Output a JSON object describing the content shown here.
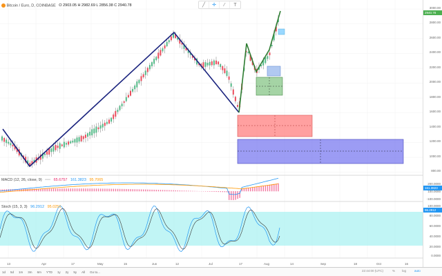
{
  "symbol": {
    "title": "Bitcoin / Euro, D, COINBASE",
    "ohlc": "O 2903.05  H 2982.69  L 2856.38  C 2940.78"
  },
  "toolbar": {
    "icons": [
      "trend-line-icon",
      "crosshair-icon",
      "brush-icon",
      "text-icon"
    ],
    "text_tool": "T"
  },
  "price_axis": {
    "ticks": [
      "3000.00",
      "2800.00",
      "2600.00",
      "2400.00",
      "2200.00",
      "2000.00",
      "1800.00",
      "1600.00",
      "1400.00",
      "1200.00",
      "1000.00",
      "800.00"
    ],
    "last_price": "2940.78",
    "last_price_color": "#4caf50"
  },
  "macd": {
    "label": "MACD (12, 26, close, 9)",
    "values": [
      "65.6757",
      "161.3823",
      "95.7065"
    ],
    "ticks": [
      "200.0000",
      "100.0000",
      "0.0000",
      "-100.0000"
    ],
    "colors": {
      "macd": "#2196f3",
      "signal": "#ff9800",
      "hist": "#e91e63"
    }
  },
  "stoch": {
    "label": "Stoch (15, 3, 3)",
    "values": [
      "96.2912",
      "95.0251"
    ],
    "ticks": [
      "100.0000",
      "80.0000",
      "60.0000",
      "40.0000",
      "20.0000",
      "0.0000"
    ],
    "band_color": "#b2f2f2"
  },
  "time_axis": {
    "labels": [
      "13",
      "Apr",
      "17",
      "May",
      "15",
      "Jun",
      "12",
      "Jul",
      "17",
      "Aug",
      "14",
      "Sep",
      "18",
      "Oct",
      "16"
    ]
  },
  "bottom_bar": {
    "ranges": [
      "1d",
      "5d",
      "1m",
      "3m",
      "6m",
      "YTD",
      "1y",
      "2y",
      "5y",
      "All",
      "Go to..."
    ],
    "clock": "22:44:00 (UTC)",
    "pct": "%",
    "log": "log",
    "auto": "auto"
  }
}
